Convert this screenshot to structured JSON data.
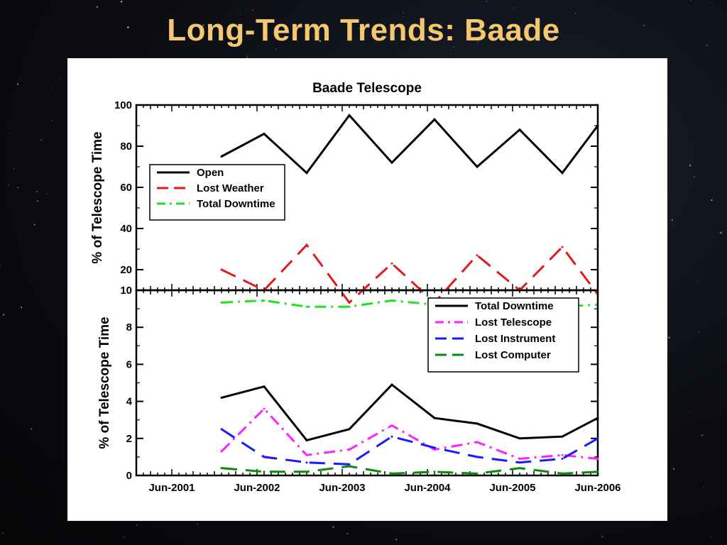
{
  "slide": {
    "title": "Long-Term Trends: Baade"
  },
  "colors": {
    "title": "#f4c870",
    "background": "#0b0d12",
    "panel": "#ffffff"
  },
  "chart_data": [
    {
      "type": "line",
      "title": "Baade Telescope",
      "xlabel": "",
      "ylabel": "% of Telescope Time",
      "xlim": [
        "2001-01",
        "2006-06"
      ],
      "ylim": [
        10,
        100
      ],
      "yticks": [
        100,
        80,
        60,
        40,
        20,
        10
      ],
      "grid": false,
      "legend_placement": "left-middle",
      "x": [
        "2002-01",
        "2002-07",
        "2003-01",
        "2003-07",
        "2004-01",
        "2004-07",
        "2005-01",
        "2005-07",
        "2006-01",
        "2006-06"
      ],
      "series": [
        {
          "name": "Open",
          "color": "#000000",
          "dash": "solid",
          "values": [
            75,
            86,
            67,
            95,
            72,
            93,
            70,
            88,
            67,
            90
          ]
        },
        {
          "name": "Lost Weather",
          "color": "#e31a1c",
          "dash": "dash",
          "values": [
            20,
            10,
            32,
            4,
            23,
            4,
            27,
            10,
            31,
            8
          ]
        },
        {
          "name": "Total Downtime",
          "color": "#22e022",
          "dash": "dashdot",
          "values": [
            4,
            5,
            2,
            2,
            5,
            3,
            3,
            2,
            2,
            3
          ]
        }
      ]
    },
    {
      "type": "line",
      "title": "",
      "xlabel": "",
      "ylabel": "% of Telescope Time",
      "xlim": [
        "2001-01",
        "2006-06"
      ],
      "ylim": [
        0,
        10
      ],
      "yticks": [
        0,
        2,
        4,
        6,
        8
      ],
      "xtick_labels": [
        "Jun-2001",
        "Jun-2002",
        "Jun-2003",
        "Jun-2004",
        "Jun-2005",
        "Jun-2006"
      ],
      "grid": false,
      "legend_placement": "top-right",
      "x": [
        "2002-01",
        "2002-07",
        "2003-01",
        "2003-07",
        "2004-01",
        "2004-07",
        "2005-01",
        "2005-07",
        "2006-01",
        "2006-06"
      ],
      "series": [
        {
          "name": "Total Downtime",
          "color": "#000000",
          "dash": "solid",
          "values": [
            4.2,
            4.8,
            1.9,
            2.5,
            4.9,
            3.1,
            2.8,
            2.0,
            2.1,
            3.1
          ]
        },
        {
          "name": "Lost Telescope",
          "color": "#ff22ff",
          "dash": "dashdot",
          "values": [
            1.3,
            3.6,
            1.1,
            1.4,
            2.7,
            1.4,
            1.8,
            0.9,
            1.1,
            0.9
          ]
        },
        {
          "name": "Lost Instrument",
          "color": "#1a1aff",
          "dash": "dash",
          "values": [
            2.5,
            1.0,
            0.7,
            0.6,
            2.1,
            1.5,
            1.0,
            0.7,
            0.9,
            2.0
          ]
        },
        {
          "name": "Lost Computer",
          "color": "#0a8a0a",
          "dash": "dash",
          "values": [
            0.4,
            0.2,
            0.2,
            0.5,
            0.1,
            0.2,
            0.1,
            0.4,
            0.1,
            0.2
          ]
        }
      ]
    }
  ]
}
